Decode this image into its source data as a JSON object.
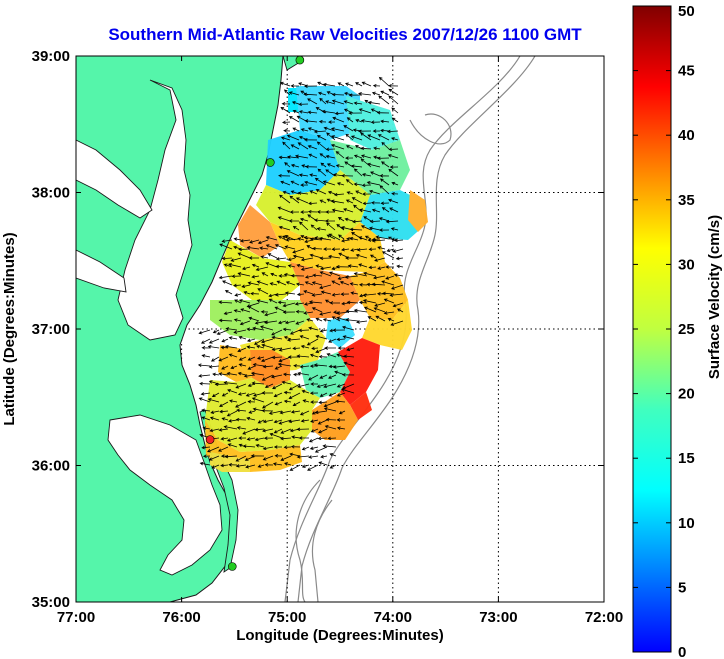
{
  "title": "Southern Mid-Atlantic Raw Velocities 2007/12/26 1100 GMT",
  "xlabel": "Longitude (Degrees:Minutes)",
  "ylabel": "Latitude (Degrees:Minutes)",
  "x_ticks": [
    "77:00",
    "76:00",
    "75:00",
    "74:00",
    "73:00",
    "72:00"
  ],
  "y_ticks": [
    "39:00",
    "38:00",
    "37:00",
    "36:00",
    "35:00"
  ],
  "colorbar": {
    "label": "Surface Velocity (cm/s)",
    "ticks": [
      "0",
      "5",
      "10",
      "15",
      "20",
      "25",
      "30",
      "35",
      "40",
      "45",
      "50"
    ],
    "range": [
      0,
      50
    ]
  },
  "extent": {
    "lon": [
      -77,
      -72
    ],
    "lat": [
      35,
      39
    ]
  },
  "stations": [
    {
      "lon": -74.88,
      "lat": 38.97,
      "color": "#22cc22"
    },
    {
      "lon": -75.16,
      "lat": 38.22,
      "color": "#22cc22"
    },
    {
      "lon": -75.73,
      "lat": 36.19,
      "color": "#ee2222"
    },
    {
      "lon": -75.52,
      "lat": 35.26,
      "color": "#22cc22"
    }
  ],
  "colors": {
    "land": "#55f5aa",
    "title": "#0000ee",
    "coast": "#000000",
    "bathymetry": "#888888"
  }
}
